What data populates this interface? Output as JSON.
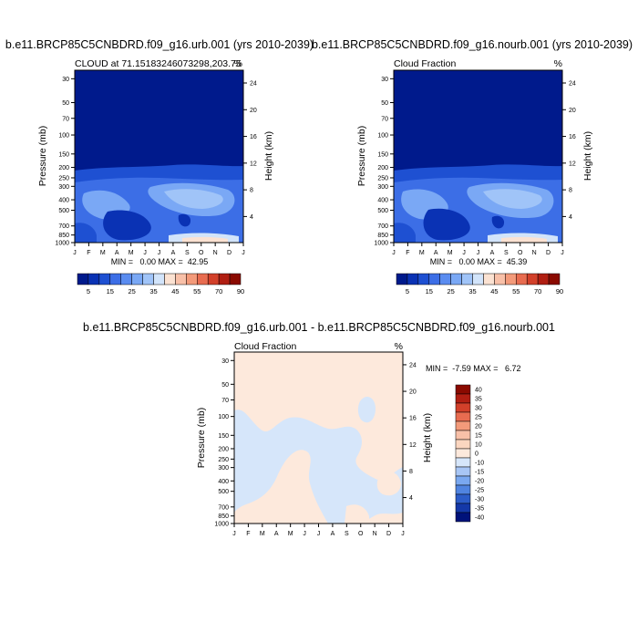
{
  "chart_data": [
    {
      "type": "heatmap",
      "title": "b.e11.BRCP85C5CNBDRD.f09_g16.urb.001 (yrs 2010-2039)",
      "subtitle_left": "CLOUD at 71.15183246073298,203.75",
      "subtitle_right": "%",
      "xlabel": "",
      "ylabel": "Pressure (mb)",
      "ylabel_right": "Height (km)",
      "x_ticks": [
        "J",
        "F",
        "M",
        "A",
        "M",
        "J",
        "J",
        "A",
        "S",
        "O",
        "N",
        "D",
        "J"
      ],
      "y_ticks": [
        "30",
        "50",
        "70",
        "100",
        "150",
        "200",
        "250",
        "300",
        "400",
        "500",
        "700",
        "850",
        "1000"
      ],
      "y_right_ticks": [
        "24",
        "20",
        "16",
        "12",
        "8",
        "4"
      ],
      "stats": "MIN =   0.00 MAX =  42.95",
      "min": 0.0,
      "max": 42.95,
      "colorbar_labels": [
        "5",
        "15",
        "25",
        "35",
        "45",
        "55",
        "70",
        "90"
      ]
    },
    {
      "type": "heatmap",
      "title": "b.e11.BRCP85C5CNBDRD.f09_g16.nourb.001 (yrs 2010-2039)",
      "subtitle_left": "Cloud Fraction",
      "subtitle_right": "%",
      "xlabel": "",
      "ylabel": "Pressure (mb)",
      "ylabel_right": "Height (km)",
      "x_ticks": [
        "J",
        "F",
        "M",
        "A",
        "M",
        "J",
        "J",
        "A",
        "S",
        "O",
        "N",
        "D",
        "J"
      ],
      "y_ticks": [
        "30",
        "50",
        "70",
        "100",
        "150",
        "200",
        "250",
        "300",
        "400",
        "500",
        "700",
        "850",
        "1000"
      ],
      "y_right_ticks": [
        "24",
        "20",
        "16",
        "12",
        "8",
        "4"
      ],
      "stats": "MIN =   0.00 MAX =  45.39",
      "min": 0.0,
      "max": 45.39,
      "colorbar_labels": [
        "5",
        "15",
        "25",
        "35",
        "45",
        "55",
        "70",
        "90"
      ]
    },
    {
      "type": "heatmap",
      "title": "b.e11.BRCP85C5CNBDRD.f09_g16.urb.001 - b.e11.BRCP85C5CNBDRD.f09_g16.nourb.001",
      "subtitle_left": "Cloud Fraction",
      "subtitle_right": "%",
      "xlabel": "",
      "ylabel": "Pressure (mb)",
      "ylabel_right": "Height (km)",
      "x_ticks": [
        "J",
        "F",
        "M",
        "A",
        "M",
        "J",
        "J",
        "A",
        "S",
        "O",
        "N",
        "D",
        "J"
      ],
      "y_ticks": [
        "30",
        "50",
        "70",
        "100",
        "150",
        "200",
        "250",
        "300",
        "400",
        "500",
        "700",
        "850",
        "1000"
      ],
      "y_right_ticks": [
        "24",
        "20",
        "16",
        "12",
        "8",
        "4"
      ],
      "stats": "MIN =  -7.59 MAX =   6.72",
      "min": -7.59,
      "max": 6.72,
      "colorbar_labels": [
        "40",
        "35",
        "30",
        "25",
        "20",
        "15",
        "10",
        "0",
        "-10",
        "-15",
        "-20",
        "-25",
        "-30",
        "-35",
        "-40"
      ]
    }
  ],
  "colors": {
    "sequential": [
      "#001a8c",
      "#0a32b4",
      "#1e50d2",
      "#3c6ee6",
      "#5a8cf0",
      "#7aa8f5",
      "#a0c4f8",
      "#d2e4fa",
      "#fbe2d2",
      "#f8c0a8",
      "#f39a7a",
      "#e86c50",
      "#d2402a",
      "#b01e12",
      "#8a0a00"
    ],
    "difference": [
      "#8a0a00",
      "#b01e12",
      "#d2402a",
      "#e86c50",
      "#f39a7a",
      "#f8c0a8",
      "#fbd6c0",
      "#fde9dc",
      "#d6e6fa",
      "#a8c6f5",
      "#7aa8f0",
      "#5084e0",
      "#2c5cc8",
      "#1438a8",
      "#00127a"
    ],
    "diff_positive": "#fde9dc",
    "diff_negative": "#d6e6fa"
  }
}
